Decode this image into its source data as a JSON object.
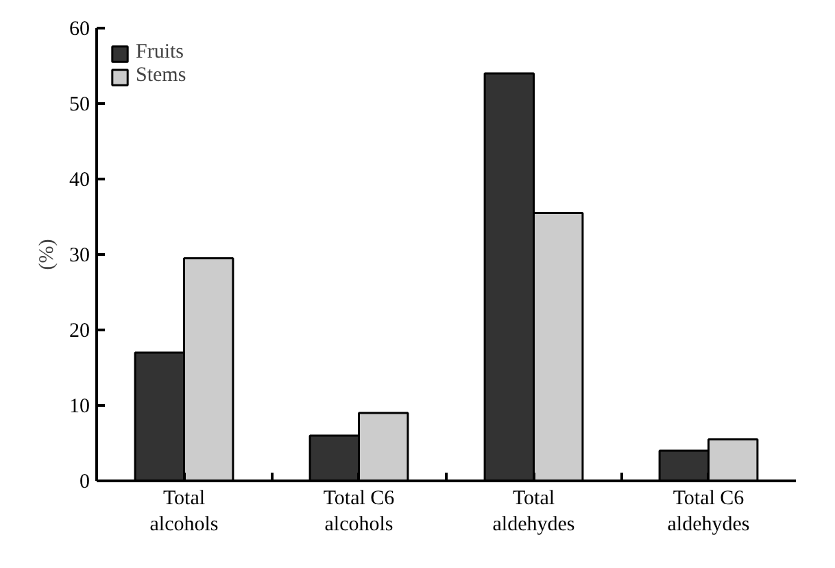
{
  "chart_data": {
    "type": "bar",
    "ylabel": "(%)",
    "categories": [
      "Total alcohols",
      "Total C6 alcohols",
      "Total aldehydes",
      "Total C6 aldehydes"
    ],
    "series": [
      {
        "name": "Fruits",
        "color": "#333333",
        "values": [
          17,
          6,
          54,
          4
        ]
      },
      {
        "name": "Stems",
        "color": "#cccccc",
        "values": [
          29.5,
          9,
          35.5,
          5.5
        ]
      }
    ],
    "ylim": [
      0,
      60
    ],
    "yticks": [
      0,
      10,
      20,
      30,
      40,
      50,
      60
    ],
    "grid": false,
    "legend": "top left"
  }
}
